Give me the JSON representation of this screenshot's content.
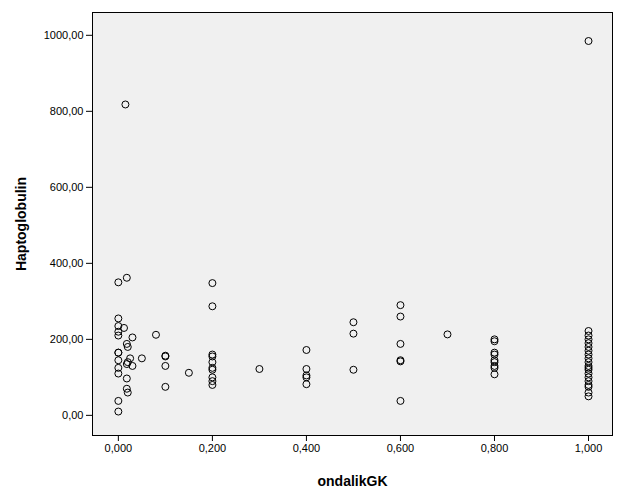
{
  "chart_data": {
    "type": "scatter",
    "x_label": "ondalikGK",
    "y_label": "Haptoglobulin",
    "marker": "circle",
    "color": "#000000",
    "x": [
      0,
      0,
      0,
      0,
      0,
      0,
      0,
      0,
      0,
      0,
      0,
      0,
      0.015,
      0.018,
      0.012,
      0.018,
      0.02,
      0.02,
      0.018,
      0.018,
      0.018,
      0.02,
      0.025,
      0.03,
      0.03,
      0.05,
      0.08,
      0.1,
      0.1,
      0.1,
      0.1,
      0.15,
      0.2,
      0.2,
      0.2,
      0.2,
      0.2,
      0.2,
      0.2,
      0.2,
      0.2,
      0.2,
      0.3,
      0.4,
      0.4,
      0.4,
      0.4,
      0.4,
      0.5,
      0.5,
      0.5,
      0.6,
      0.6,
      0.6,
      0.6,
      0.6,
      0.6,
      0.7,
      0.8,
      0.8,
      0.8,
      0.8,
      0.8,
      0.8,
      0.8,
      0.8,
      0.8,
      1,
      1,
      1,
      1,
      1,
      1,
      1,
      1,
      1,
      1,
      1,
      1,
      1,
      1,
      1,
      1,
      1,
      1,
      1,
      1
    ],
    "y": [
      350,
      255,
      235,
      220,
      210,
      165,
      165,
      145,
      125,
      110,
      38,
      10,
      818,
      362,
      230,
      188,
      180,
      140,
      135,
      97,
      70,
      60,
      150,
      205,
      130,
      150,
      212,
      157,
      155,
      130,
      75,
      112,
      348,
      287,
      160,
      155,
      140,
      125,
      120,
      100,
      90,
      80,
      122,
      172,
      122,
      105,
      100,
      82,
      245,
      215,
      120,
      290,
      260,
      188,
      145,
      142,
      38,
      213,
      200,
      195,
      165,
      160,
      145,
      140,
      130,
      125,
      108,
      985,
      222,
      210,
      200,
      190,
      180,
      170,
      160,
      150,
      140,
      130,
      125,
      120,
      110,
      100,
      90,
      80,
      75,
      60,
      50
    ],
    "xlim": [
      -0.055,
      1.051
    ],
    "ylim": [
      -53,
      1060
    ],
    "xticks": [
      {
        "value": 0,
        "label": "0,000"
      },
      {
        "value": 0.2,
        "label": "0,200"
      },
      {
        "value": 0.4,
        "label": "0,400"
      },
      {
        "value": 0.6,
        "label": "0,600"
      },
      {
        "value": 0.8,
        "label": "0,800"
      },
      {
        "value": 1,
        "label": "1,000"
      }
    ],
    "yticks": [
      {
        "value": 0,
        "label": "0,00"
      },
      {
        "value": 200,
        "label": "200,00"
      },
      {
        "value": 400,
        "label": "400,00"
      },
      {
        "value": 600,
        "label": "600,00"
      },
      {
        "value": 800,
        "label": "800,00"
      },
      {
        "value": 1000,
        "label": "1000,00"
      }
    ]
  }
}
